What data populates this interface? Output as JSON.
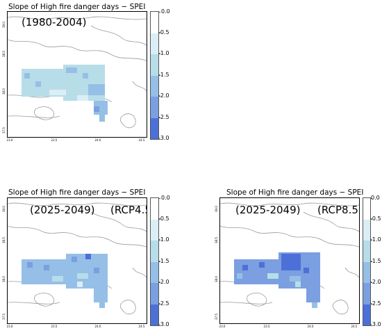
{
  "colorbar": {
    "ticks": [
      "0.0",
      "-0.5",
      "-1.0",
      "-1.5",
      "-2.0",
      "-2.5",
      "-3.0"
    ],
    "colors": [
      "#ffffff",
      "#dbeef5",
      "#b7dde9",
      "#95bfe6",
      "#7b9fe0",
      "#4d70d8"
    ]
  },
  "axes": {
    "x_ticks": [
      "23.0",
      "23.5",
      "24.0",
      "24.5"
    ],
    "y_ticks": [
      "39.0",
      "38.5",
      "38.0",
      "37.5"
    ]
  },
  "panels": [
    {
      "title": "Slope of High fire danger  days − SPEI",
      "period": "(1980-2004)",
      "scenario": ""
    },
    {
      "title": "Slope of High fire danger  days − SPEI",
      "period": "(2025-2049)",
      "scenario": "(RCP4.5)"
    },
    {
      "title": "Slope of High fire danger days − SPEI",
      "period": "(2025-2049)",
      "scenario": "(RCP8.5)"
    }
  ]
}
